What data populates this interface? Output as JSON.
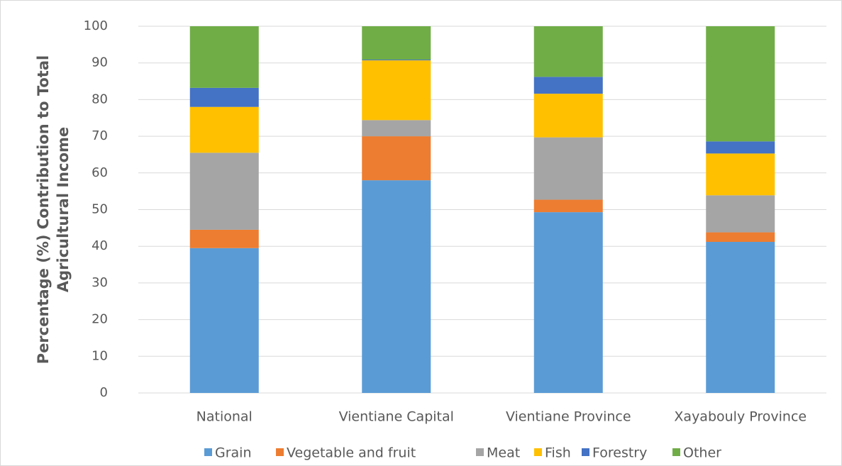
{
  "chart_data": {
    "type": "stacked_bar",
    "y_label": [
      "Percentage (%) Contribution to Total",
      "Agricultural Income"
    ],
    "categories": [
      "National",
      "Vientiane Capital",
      "Vientiane Province",
      "Xayabouly Province"
    ],
    "series": [
      {
        "name": "Grain",
        "color": "#5b9bd5",
        "values": [
          39.5,
          58,
          49.3,
          41.2
        ]
      },
      {
        "name": "Vegetable and fruit",
        "color": "#ed7d31",
        "values": [
          5,
          12,
          3.4,
          2.6
        ]
      },
      {
        "name": "Meat",
        "color": "#a5a5a5",
        "values": [
          21,
          4.4,
          17,
          10.1
        ]
      },
      {
        "name": "Fish",
        "color": "#ffc000",
        "values": [
          12.5,
          16.3,
          11.9,
          11.4
        ]
      },
      {
        "name": "Forestry",
        "color": "#4472c4",
        "values": [
          5.2,
          0.2,
          4.6,
          3.3
        ]
      },
      {
        "name": "Other",
        "color": "#70ad47",
        "values": [
          16.8,
          9.1,
          13.8,
          31.4
        ]
      }
    ],
    "ylim": [
      0,
      100
    ],
    "yticks": [
      0,
      10,
      20,
      30,
      40,
      50,
      60,
      70,
      80,
      90,
      100
    ],
    "grid": true,
    "legend": "bottom"
  }
}
